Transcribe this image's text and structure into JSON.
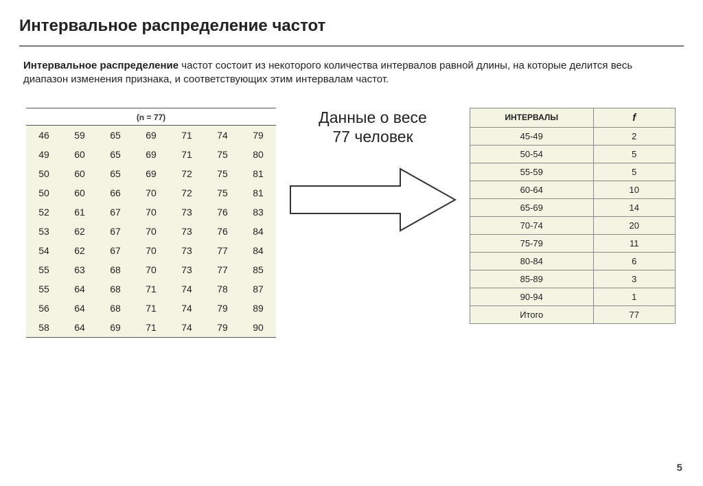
{
  "title": "Интервальное распределение частот",
  "description_bold": "Интервальное распределение",
  "description_rest": " частот состоит из некоторого количества интервалов равной длины, на которые делится весь диапазон изменения признака, и соответствующих этим интервалам частот.",
  "data_table": {
    "header": "(n = 77)",
    "background_color": "#f3f4e2",
    "border_color": "#555555",
    "cell_fontsize": 14,
    "rows": [
      [
        46,
        59,
        65,
        69,
        71,
        74,
        79
      ],
      [
        49,
        60,
        65,
        69,
        71,
        75,
        80
      ],
      [
        50,
        60,
        65,
        69,
        72,
        75,
        81
      ],
      [
        50,
        60,
        66,
        70,
        72,
        75,
        81
      ],
      [
        52,
        61,
        67,
        70,
        73,
        76,
        83
      ],
      [
        53,
        62,
        67,
        70,
        73,
        76,
        84
      ],
      [
        54,
        62,
        67,
        70,
        73,
        77,
        84
      ],
      [
        55,
        63,
        68,
        70,
        73,
        77,
        85
      ],
      [
        55,
        64,
        68,
        71,
        74,
        78,
        87
      ],
      [
        56,
        64,
        68,
        71,
        74,
        79,
        89
      ],
      [
        58,
        64,
        69,
        71,
        74,
        79,
        90
      ]
    ]
  },
  "middle_label_line1": "Данные о весе",
  "middle_label_line2": "77 человек",
  "arrow": {
    "stroke": "#333333",
    "fill": "#ffffff"
  },
  "freq_table": {
    "header_interval": "ИНТЕРВАЛЫ",
    "header_f": "f",
    "background_color": "#f3f4e2",
    "border_color": "#888888",
    "rows": [
      {
        "interval": "45-49",
        "f": 2
      },
      {
        "interval": "50-54",
        "f": 5
      },
      {
        "interval": "55-59",
        "f": 5
      },
      {
        "interval": "60-64",
        "f": 10
      },
      {
        "interval": "65-69",
        "f": 14
      },
      {
        "interval": "70-74",
        "f": 20
      },
      {
        "interval": "75-79",
        "f": 11
      },
      {
        "interval": "80-84",
        "f": 6
      },
      {
        "interval": "85-89",
        "f": 3
      },
      {
        "interval": "90-94",
        "f": 1
      }
    ],
    "total_label": "Итого",
    "total_value": 77
  },
  "page_number": "5"
}
